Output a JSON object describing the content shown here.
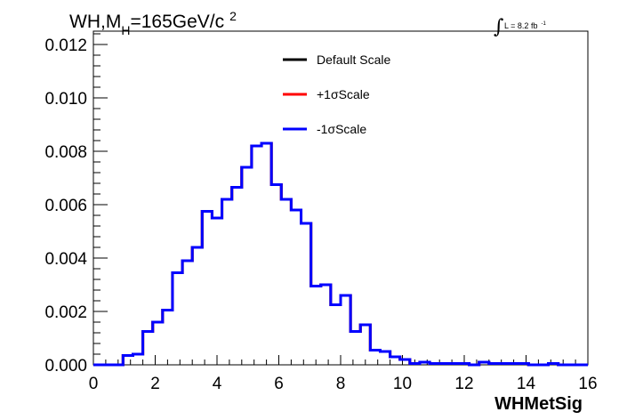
{
  "chart_data": {
    "type": "line",
    "title": {
      "prefix": "WH,M",
      "subscript": "H",
      "suffix": "=165GeV/c",
      "superscript": "2"
    },
    "luminosity": {
      "integral_symbol": "∫",
      "text": "L = 8.2 fb",
      "superscript": "-1"
    },
    "xlabel": "WHMetSig",
    "ylabel": "",
    "xlim": [
      0,
      16
    ],
    "ylim": [
      0,
      0.0125
    ],
    "x_ticks": [
      "0",
      "2",
      "4",
      "6",
      "8",
      "10",
      "12",
      "14",
      "16"
    ],
    "y_ticks": [
      "0.000",
      "0.002",
      "0.004",
      "0.006",
      "0.008",
      "0.010",
      "0.012"
    ],
    "bin_edges": [
      0,
      0.32,
      0.64,
      0.96,
      1.28,
      1.6,
      1.92,
      2.24,
      2.56,
      2.88,
      3.2,
      3.52,
      3.84,
      4.16,
      4.48,
      4.8,
      5.12,
      5.44,
      5.76,
      6.08,
      6.4,
      6.72,
      7.04,
      7.36,
      7.68,
      8.0,
      8.32,
      8.64,
      8.96,
      9.28,
      9.6,
      9.92,
      10.24,
      10.56,
      10.88,
      11.2,
      11.52,
      11.84,
      12.16,
      12.48,
      12.8,
      13.12,
      13.44,
      13.76,
      14.08,
      14.4,
      14.72,
      15.04,
      15.36,
      15.68,
      16.0
    ],
    "series": [
      {
        "name": "Default Scale",
        "color": "#000000",
        "values": [
          0,
          0,
          0,
          0.00035,
          0.0004,
          0.00125,
          0.0016,
          0.00205,
          0.00345,
          0.0039,
          0.0044,
          0.00575,
          0.0055,
          0.0062,
          0.00665,
          0.0074,
          0.0082,
          0.0083,
          0.00675,
          0.0062,
          0.0058,
          0.0053,
          0.00295,
          0.003,
          0.00225,
          0.0026,
          0.00125,
          0.0015,
          0.00055,
          0.0005,
          0.0003,
          0.0002,
          5e-05,
          0.0001,
          5e-05,
          5e-05,
          5e-05,
          5e-05,
          0,
          0.0001,
          5e-05,
          5e-05,
          5e-05,
          5e-05,
          0,
          0,
          5e-05,
          0,
          0,
          0
        ]
      },
      {
        "name": "+1σScale",
        "color": "#ff0000",
        "values": [
          0,
          0,
          0,
          0.00035,
          0.0004,
          0.00125,
          0.0016,
          0.00205,
          0.00345,
          0.0039,
          0.0044,
          0.00575,
          0.0055,
          0.0062,
          0.00665,
          0.0074,
          0.0082,
          0.0083,
          0.00675,
          0.0062,
          0.0058,
          0.0053,
          0.00295,
          0.003,
          0.00225,
          0.0026,
          0.00125,
          0.0015,
          0.00055,
          0.0005,
          0.0003,
          0.0002,
          5e-05,
          0.0001,
          5e-05,
          5e-05,
          5e-05,
          5e-05,
          0,
          0.0001,
          5e-05,
          5e-05,
          5e-05,
          5e-05,
          0,
          0,
          5e-05,
          0,
          0,
          0
        ]
      },
      {
        "name": "-1σScale",
        "color": "#0000ff",
        "values": [
          0,
          0,
          0,
          0.00035,
          0.0004,
          0.00125,
          0.0016,
          0.00205,
          0.00345,
          0.0039,
          0.0044,
          0.00575,
          0.0055,
          0.0062,
          0.00665,
          0.0074,
          0.0082,
          0.0083,
          0.00675,
          0.0062,
          0.0058,
          0.0053,
          0.00295,
          0.003,
          0.00225,
          0.0026,
          0.00125,
          0.0015,
          0.00055,
          0.0005,
          0.0003,
          0.0002,
          5e-05,
          0.0001,
          5e-05,
          5e-05,
          5e-05,
          5e-05,
          0,
          0.0001,
          5e-05,
          5e-05,
          5e-05,
          5e-05,
          0,
          0,
          5e-05,
          0,
          0,
          0
        ]
      }
    ],
    "legend": {
      "placement": "top-center",
      "entries": [
        "Default Scale",
        "+1σScale",
        "-1σScale"
      ]
    },
    "grid": false
  }
}
